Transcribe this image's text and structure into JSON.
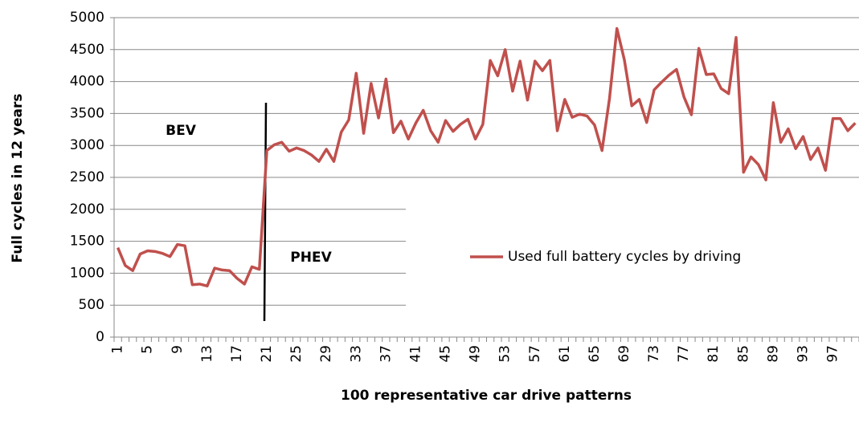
{
  "chart_data": {
    "type": "line",
    "x_label": "100 representative car drive patterns",
    "y_label": "Full cycles in 12 years",
    "annotations": [
      "BEV",
      "PHEV"
    ],
    "categories": [
      1,
      null,
      null,
      null,
      5,
      null,
      null,
      null,
      9,
      null,
      null,
      null,
      13,
      null,
      null,
      null,
      17,
      null,
      null,
      null,
      21,
      null,
      null,
      null,
      25,
      null,
      null,
      null,
      29,
      null,
      null,
      null,
      33,
      null,
      null,
      null,
      37,
      null,
      null,
      null,
      41,
      null,
      null,
      null,
      45,
      null,
      null,
      null,
      49,
      null,
      null,
      null,
      53,
      null,
      null,
      null,
      57,
      null,
      null,
      null,
      61,
      null,
      null,
      null,
      65,
      null,
      null,
      null,
      69,
      null,
      null,
      null,
      73,
      null,
      null,
      null,
      77,
      null,
      null,
      null,
      81,
      null,
      null,
      null,
      85,
      null,
      null,
      null,
      89,
      null,
      null,
      null,
      93,
      null,
      null,
      null,
      97,
      null,
      null,
      null
    ],
    "series": [
      {
        "name": "Used full battery cycles by driving",
        "color": "#c0504d",
        "values": [
          1400,
          1120,
          1040,
          1300,
          1350,
          1340,
          1310,
          1260,
          1450,
          1430,
          820,
          830,
          800,
          1080,
          1050,
          1040,
          920,
          830,
          1100,
          1060,
          2920,
          3010,
          3050,
          2910,
          2960,
          2920,
          2850,
          2750,
          2940,
          2750,
          3210,
          3400,
          4130,
          3190,
          3970,
          3430,
          4040,
          3200,
          3380,
          3100,
          3350,
          3550,
          3230,
          3050,
          3390,
          3220,
          3330,
          3410,
          3100,
          3330,
          4330,
          4090,
          4500,
          3850,
          4320,
          3710,
          4320,
          4170,
          4330,
          3230,
          3720,
          3440,
          3490,
          3460,
          3320,
          2920,
          3730,
          4830,
          4340,
          3620,
          3720,
          3360,
          3870,
          3990,
          4100,
          4190,
          3760,
          3480,
          4520,
          4110,
          4120,
          3890,
          3810,
          4690,
          2580,
          2820,
          2700,
          2460,
          3670,
          3050,
          3260,
          2950,
          3140,
          2780,
          2960,
          2610,
          3420,
          3420,
          3230,
          3350
        ]
      }
    ],
    "ylim": [
      0,
      5000
    ],
    "yticks": [
      0,
      500,
      1000,
      1500,
      2000,
      2500,
      3000,
      3500,
      4000,
      4500,
      5000
    ],
    "grid": true
  }
}
